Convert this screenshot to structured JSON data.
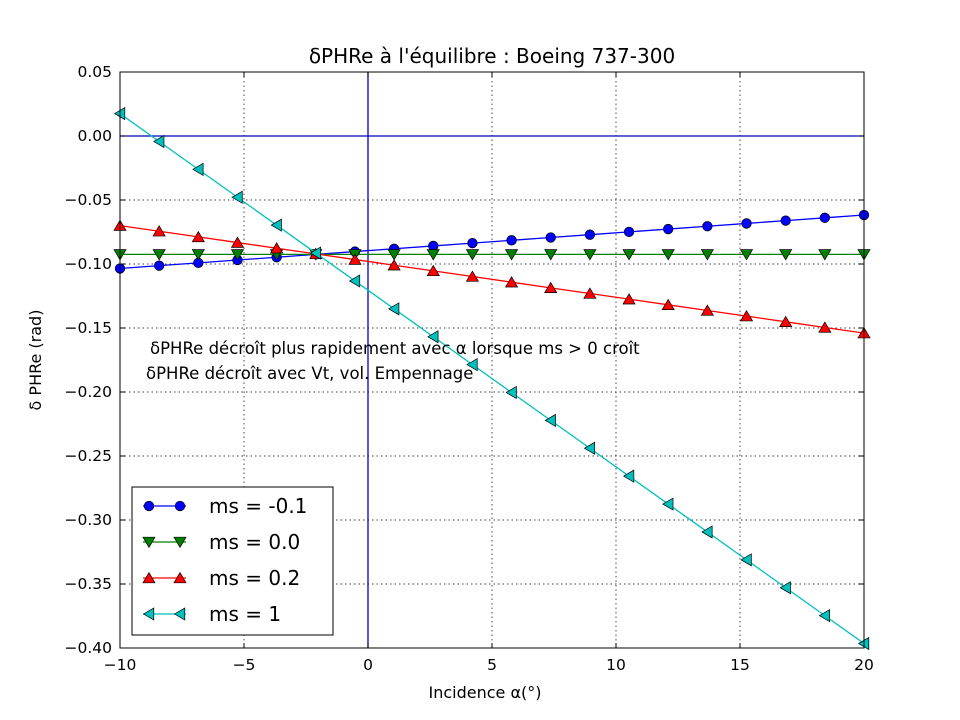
{
  "chart_data": {
    "type": "line",
    "title": "δPHRe à l'équilibre : Boeing 737-300",
    "xlabel": "Incidence α(°)",
    "ylabel": "δ PHRe (rad)",
    "xlim": [
      -10,
      20
    ],
    "ylim": [
      -0.4,
      0.05
    ],
    "xticks": [
      "−10",
      "−5",
      "0",
      "5",
      "10",
      "15",
      "20"
    ],
    "yticks": [
      "0.05",
      "0.00",
      "−0.05",
      "−0.10",
      "−0.15",
      "−0.20",
      "−0.25",
      "−0.30",
      "−0.35",
      "−0.40"
    ],
    "grid": true,
    "legend_position": "lower-left",
    "reference_lines": {
      "x": 0,
      "y": 0,
      "color": "#0000bf"
    },
    "annotations": [
      "δPHRe décroît plus rapidement avec α lorsque ms > 0 croît",
      "δPHRe décroît avec Vt, vol. Empennage"
    ],
    "x": [
      -10,
      -8.421,
      -6.842,
      -5.263,
      -3.684,
      -2.105,
      -0.526,
      1.053,
      2.632,
      4.211,
      5.789,
      7.368,
      8.947,
      10.526,
      12.105,
      13.684,
      15.263,
      16.842,
      18.421,
      20
    ],
    "series": [
      {
        "name": "ms = -0.1",
        "color": "#0000ff",
        "marker": "circle",
        "y_start": -0.1035,
        "y_end": -0.0617
      },
      {
        "name": "ms = 0.0",
        "color": "#008000",
        "marker": "triangle-down",
        "y_start": -0.0925,
        "y_end": -0.0925
      },
      {
        "name": "ms = 0.2",
        "color": "#ff0000",
        "marker": "triangle-up",
        "y_start": -0.07,
        "y_end": -0.154
      },
      {
        "name": "ms = 1",
        "color": "#00bfbf",
        "marker": "triangle-left",
        "y_start": 0.0175,
        "y_end": -0.3965
      }
    ]
  }
}
